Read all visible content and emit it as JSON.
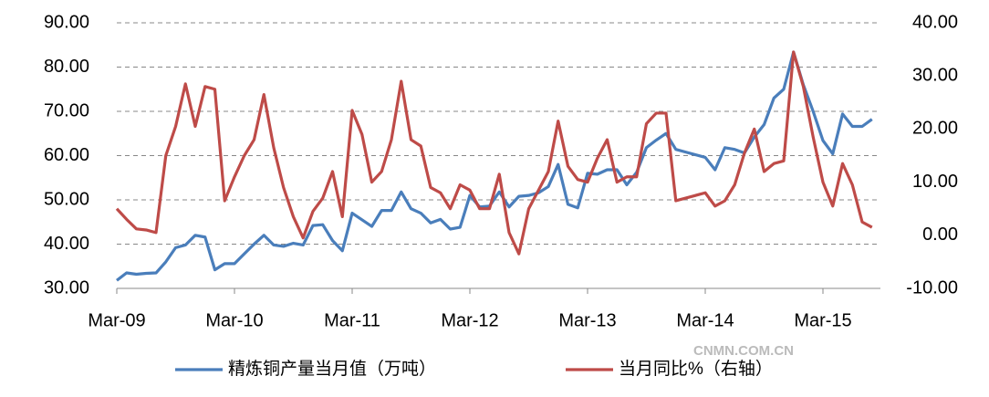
{
  "chart_data": {
    "type": "line",
    "categories": [
      "Mar-09",
      null,
      null,
      null,
      null,
      null,
      null,
      null,
      null,
      null,
      null,
      null,
      "Mar-10",
      null,
      null,
      null,
      null,
      null,
      null,
      null,
      null,
      null,
      null,
      null,
      "Mar-11",
      null,
      null,
      null,
      null,
      null,
      null,
      null,
      null,
      null,
      null,
      null,
      "Mar-12",
      null,
      null,
      null,
      null,
      null,
      null,
      null,
      null,
      null,
      null,
      null,
      "Mar-13",
      null,
      null,
      null,
      null,
      null,
      null,
      null,
      null,
      null,
      null,
      null,
      "Mar-14",
      null,
      null,
      null,
      null,
      null,
      null,
      null,
      null,
      null,
      null,
      null,
      "Mar-15",
      null,
      null,
      null,
      null,
      null
    ],
    "series": [
      {
        "name": "精炼铜产量当月值（万吨）",
        "color": "#4a7ebb",
        "axis": "y",
        "values": [
          31.8,
          33.5,
          33.2,
          33.4,
          33.5,
          36,
          39.2,
          39.8,
          42,
          41.6,
          34.2,
          35.6,
          35.6,
          37.8,
          40,
          42,
          39.8,
          39.5,
          40.2,
          39.8,
          44.2,
          44.4,
          40.8,
          38.5,
          47,
          45.5,
          44,
          47.6,
          47.6,
          51.8,
          48,
          47,
          44.8,
          45.6,
          43.4,
          43.8,
          51,
          48.4,
          48.6,
          51.8,
          48.4,
          50.8,
          51,
          51.6,
          53,
          58,
          49,
          48.2,
          56,
          55.8,
          56.8,
          56.8,
          53.4,
          56.2,
          61.8,
          63.5,
          65,
          61.4,
          60.8,
          60.2,
          59.6,
          56.8,
          61.8,
          61.4,
          60.6,
          64.2,
          67,
          73,
          75,
          83.4,
          76,
          70,
          63.4,
          60.4,
          69.4,
          66.6,
          66.6,
          68.2
        ]
      },
      {
        "name": "当月同比%（右轴）",
        "color": "#be4b48",
        "axis": "y2",
        "values": [
          5,
          3,
          1.2,
          1,
          0.5,
          15,
          20.5,
          28.5,
          20.5,
          28,
          27.5,
          6.5,
          11,
          15,
          18,
          26.5,
          16.5,
          9,
          3.5,
          -0.5,
          4.5,
          7,
          12,
          3.5,
          23.5,
          19,
          10,
          12,
          18,
          29,
          18,
          16.8,
          9,
          8,
          5,
          9.5,
          8.5,
          5,
          5,
          11.5,
          0.5,
          -3.5,
          5,
          8.5,
          12,
          21.5,
          13,
          10.5,
          10,
          14.5,
          18,
          10,
          11,
          11,
          21,
          23,
          23,
          6.5,
          7,
          7.5,
          8,
          5.5,
          6.5,
          9.5,
          15.5,
          20,
          12,
          13.5,
          14,
          34.5,
          28,
          18.5,
          10,
          5.5,
          13.5,
          9.5,
          2.5,
          1.5
        ]
      }
    ],
    "ylim": [
      30,
      90
    ],
    "yticks": [
      {
        "value": 30,
        "label": "30.00"
      },
      {
        "value": 40,
        "label": "40.00"
      },
      {
        "value": 50,
        "label": "50.00"
      },
      {
        "value": 60,
        "label": "60.00"
      },
      {
        "value": 70,
        "label": "70.00"
      },
      {
        "value": 80,
        "label": "80.00"
      },
      {
        "value": 90,
        "label": "90.00"
      }
    ],
    "y2lim": [
      -10,
      40
    ],
    "y2ticks": [
      {
        "value": -10,
        "label": "-10.00"
      },
      {
        "value": 0,
        "label": "0.00"
      },
      {
        "value": 10,
        "label": "10.00"
      },
      {
        "value": 20,
        "label": "20.00"
      },
      {
        "value": 30,
        "label": "30.00"
      },
      {
        "value": 40,
        "label": "40.00"
      }
    ],
    "grid": true,
    "legend": "bottom",
    "watermark": "CNMN.COM.CN"
  }
}
